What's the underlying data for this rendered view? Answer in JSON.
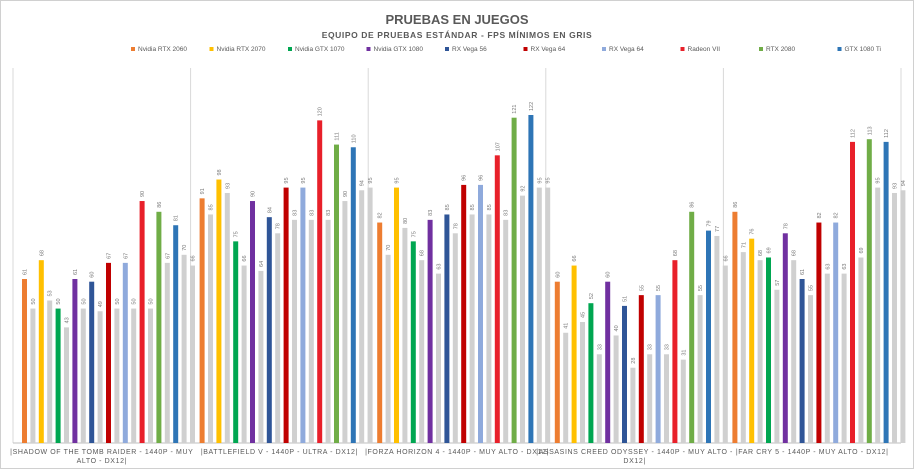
{
  "chart_data": {
    "type": "bar",
    "title": "PRUEBAS EN JUEGOS",
    "subtitle": "EQUIPO DE PRUEBAS ESTÁNDAR - FPS MÍNIMOS EN GRIS",
    "legend_position": "top",
    "categories": [
      [
        "|SHADOW OF THE TOMB RAIDER - 1440P - MUY",
        "ALTO - DX12|"
      ],
      [
        "|BATTLEFIELD V - 1440P - ULTRA - DX12|"
      ],
      [
        "|FORZA HORIZON 4 - 1440P - MUY ALTO - DX12|"
      ],
      [
        "|ASSASINS CREED ODYSSEY - 1440P - MUY ALTO -",
        "DX12|"
      ],
      [
        "|FAR CRY 5 - 1440P - MUY ALTO - DX12|"
      ]
    ],
    "ylim": [
      0,
      145
    ],
    "series": [
      {
        "name": "Nvidia RTX 2060",
        "color": "#ED7D31",
        "values": [
          61,
          91,
          82,
          60,
          86
        ],
        "min_values": [
          50,
          85,
          70,
          41,
          71
        ]
      },
      {
        "name": "Nvidia RTX 2070",
        "color": "#FFC000",
        "values": [
          68,
          98,
          95,
          66,
          76
        ],
        "min_values": [
          53,
          93,
          80,
          45,
          68
        ]
      },
      {
        "name": "Nvidia GTX 1070",
        "color": "#00A651",
        "values": [
          50,
          75,
          75,
          52,
          69
        ],
        "min_values": [
          43,
          66,
          68,
          33,
          57
        ]
      },
      {
        "name": "Nvidia GTX 1080",
        "color": "#7030A0",
        "values": [
          61,
          90,
          83,
          60,
          78
        ],
        "min_values": [
          50,
          64,
          63,
          40,
          68
        ]
      },
      {
        "name": "RX Vega 56",
        "color": "#2F5597",
        "values": [
          60,
          84,
          85,
          51,
          61
        ],
        "min_values": [
          49,
          78,
          78,
          28,
          55
        ]
      },
      {
        "name": "RX Vega 64",
        "color": "#C00000",
        "values": [
          67,
          95,
          96,
          55,
          82
        ],
        "min_values": [
          50,
          83,
          85,
          33,
          63
        ]
      },
      {
        "name": "RX Vega 64",
        "color": "#8FAADC",
        "values": [
          67,
          95,
          96,
          55,
          82
        ],
        "min_values": [
          50,
          83,
          85,
          33,
          63
        ]
      },
      {
        "name": "Radeon VII",
        "color": "#E8202A",
        "values": [
          90,
          120,
          107,
          68,
          112
        ],
        "min_values": [
          50,
          83,
          83,
          31,
          69
        ]
      },
      {
        "name": "RTX 2080",
        "color": "#70AD47",
        "values": [
          86,
          111,
          121,
          86,
          113
        ],
        "min_values": [
          67,
          90,
          92,
          55,
          95
        ]
      },
      {
        "name": "GTX 1080 Ti",
        "color": "#2E75B6",
        "values": [
          81,
          110,
          122,
          79,
          112
        ],
        "min_values": [
          70,
          94,
          95,
          77,
          93
        ]
      }
    ],
    "min_series": {
      "color": "#D0D0D0",
      "extra_values": [
        66,
        95,
        95,
        66,
        94
      ]
    }
  }
}
